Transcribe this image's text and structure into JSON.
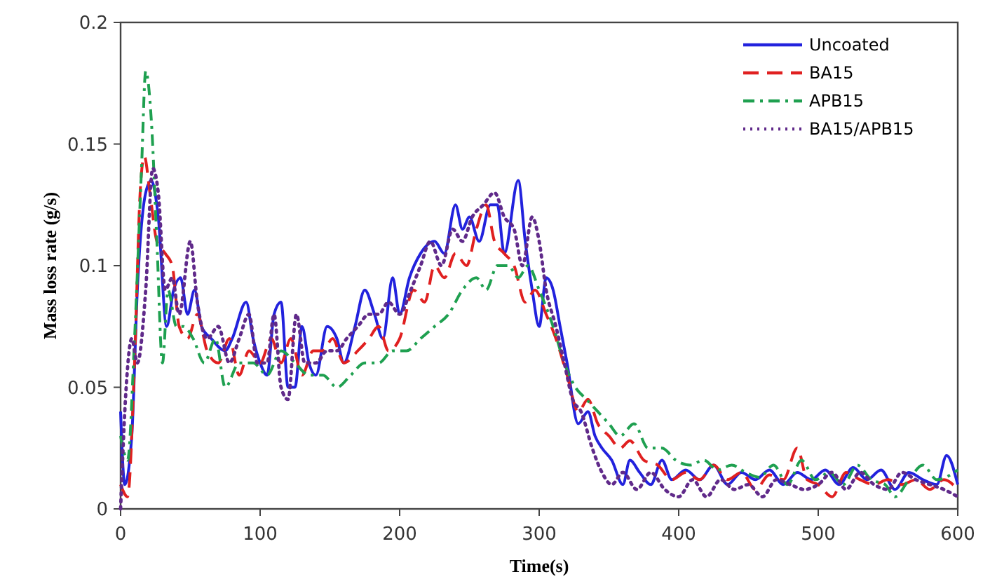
{
  "chart_data": {
    "type": "line",
    "xlabel": "Time(s)",
    "ylabel": "Mass loss rate (g/s)",
    "xlim": [
      0,
      600
    ],
    "xticks": [
      0,
      100,
      200,
      300,
      400,
      500,
      600
    ],
    "ylim": [
      0,
      0.2
    ],
    "yticks": [
      0,
      0.05,
      0.1,
      0.15,
      0.2
    ],
    "grid": false,
    "legend": "top right",
    "marker": "none",
    "series": [
      {
        "name": "Uncoated",
        "color": "#2222dd",
        "line_style": "solid",
        "x": [
          0,
          3,
          8,
          12,
          18,
          22,
          27,
          33,
          38,
          43,
          48,
          53,
          58,
          65,
          75,
          80,
          90,
          95,
          100,
          105,
          110,
          115,
          120,
          125,
          130,
          135,
          140,
          148,
          155,
          160,
          168,
          175,
          182,
          188,
          195,
          200,
          207,
          215,
          225,
          232,
          240,
          245,
          250,
          257,
          265,
          270,
          275,
          285,
          290,
          295,
          300,
          305,
          310,
          315,
          320,
          328,
          335,
          340,
          345,
          352,
          360,
          365,
          372,
          380,
          388,
          395,
          405,
          415,
          425,
          435,
          445,
          455,
          465,
          475,
          485,
          495,
          505,
          515,
          525,
          535,
          545,
          555,
          565,
          575,
          585,
          592,
          600
        ],
        "values": [
          0.04,
          0.01,
          0.03,
          0.09,
          0.13,
          0.135,
          0.12,
          0.075,
          0.09,
          0.095,
          0.08,
          0.09,
          0.075,
          0.07,
          0.065,
          0.07,
          0.085,
          0.07,
          0.06,
          0.055,
          0.08,
          0.085,
          0.05,
          0.05,
          0.075,
          0.06,
          0.055,
          0.075,
          0.07,
          0.06,
          0.075,
          0.09,
          0.08,
          0.07,
          0.095,
          0.08,
          0.095,
          0.105,
          0.11,
          0.105,
          0.125,
          0.115,
          0.12,
          0.11,
          0.125,
          0.125,
          0.105,
          0.135,
          0.11,
          0.09,
          0.075,
          0.095,
          0.09,
          0.075,
          0.06,
          0.035,
          0.04,
          0.03,
          0.025,
          0.02,
          0.01,
          0.02,
          0.015,
          0.01,
          0.02,
          0.012,
          0.016,
          0.012,
          0.018,
          0.01,
          0.015,
          0.012,
          0.016,
          0.01,
          0.015,
          0.012,
          0.016,
          0.01,
          0.017,
          0.012,
          0.016,
          0.008,
          0.015,
          0.012,
          0.01,
          0.022,
          0.01
        ]
      },
      {
        "name": "BA15",
        "color": "#e02020",
        "line_style": "dashed",
        "x": [
          0,
          5,
          10,
          14,
          17,
          21,
          26,
          32,
          37,
          42,
          48,
          55,
          62,
          70,
          78,
          85,
          92,
          100,
          108,
          115,
          122,
          130,
          138,
          145,
          152,
          160,
          170,
          178,
          185,
          192,
          200,
          210,
          218,
          225,
          232,
          240,
          248,
          255,
          262,
          268,
          275,
          282,
          290,
          297,
          305,
          312,
          320,
          328,
          335,
          342,
          350,
          358,
          365,
          375,
          385,
          395,
          405,
          415,
          425,
          435,
          445,
          455,
          465,
          475,
          485,
          492,
          500,
          510,
          520,
          530,
          540,
          550,
          560,
          570,
          580,
          590,
          600
        ],
        "values": [
          0.01,
          0.005,
          0.06,
          0.13,
          0.145,
          0.13,
          0.11,
          0.105,
          0.1,
          0.075,
          0.07,
          0.08,
          0.065,
          0.06,
          0.07,
          0.055,
          0.065,
          0.06,
          0.07,
          0.06,
          0.07,
          0.055,
          0.065,
          0.065,
          0.07,
          0.06,
          0.065,
          0.07,
          0.075,
          0.065,
          0.07,
          0.09,
          0.085,
          0.1,
          0.095,
          0.105,
          0.1,
          0.115,
          0.125,
          0.11,
          0.105,
          0.1,
          0.085,
          0.09,
          0.08,
          0.07,
          0.055,
          0.04,
          0.045,
          0.035,
          0.03,
          0.025,
          0.028,
          0.02,
          0.018,
          0.012,
          0.015,
          0.012,
          0.018,
          0.012,
          0.015,
          0.008,
          0.014,
          0.012,
          0.025,
          0.012,
          0.01,
          0.005,
          0.015,
          0.012,
          0.01,
          0.012,
          0.01,
          0.012,
          0.008,
          0.012,
          0.008
        ]
      },
      {
        "name": "APB15",
        "color": "#1fa050",
        "line_style": "dashdot",
        "x": [
          0,
          5,
          10,
          15,
          18,
          22,
          26,
          30,
          34,
          40,
          45,
          52,
          60,
          68,
          75,
          85,
          95,
          105,
          115,
          125,
          135,
          145,
          155,
          165,
          175,
          185,
          195,
          205,
          215,
          225,
          235,
          245,
          255,
          262,
          270,
          278,
          285,
          292,
          300,
          310,
          318,
          326,
          334,
          342,
          350,
          358,
          368,
          378,
          388,
          398,
          408,
          418,
          428,
          438,
          448,
          458,
          468,
          478,
          488,
          498,
          508,
          518,
          528,
          538,
          548,
          555,
          565,
          575,
          585,
          600
        ],
        "values": [
          0.03,
          0.02,
          0.07,
          0.14,
          0.18,
          0.16,
          0.11,
          0.06,
          0.09,
          0.075,
          0.075,
          0.07,
          0.06,
          0.07,
          0.05,
          0.06,
          0.06,
          0.055,
          0.065,
          0.06,
          0.055,
          0.055,
          0.05,
          0.055,
          0.06,
          0.06,
          0.065,
          0.065,
          0.07,
          0.075,
          0.08,
          0.09,
          0.095,
          0.09,
          0.1,
          0.1,
          0.095,
          0.1,
          0.09,
          0.075,
          0.06,
          0.05,
          0.045,
          0.04,
          0.035,
          0.03,
          0.035,
          0.025,
          0.025,
          0.02,
          0.018,
          0.02,
          0.016,
          0.018,
          0.015,
          0.013,
          0.018,
          0.01,
          0.02,
          0.012,
          0.015,
          0.01,
          0.018,
          0.012,
          0.01,
          0.005,
          0.012,
          0.018,
          0.012,
          0.016
        ]
      },
      {
        "name": "BA15/APB15",
        "color": "#602a8a",
        "line_style": "dotted",
        "x": [
          0,
          4,
          8,
          12,
          18,
          23,
          27,
          32,
          37,
          42,
          50,
          55,
          62,
          70,
          78,
          85,
          92,
          98,
          105,
          110,
          115,
          120,
          126,
          132,
          140,
          148,
          155,
          162,
          170,
          178,
          185,
          192,
          200,
          208,
          215,
          222,
          230,
          238,
          245,
          252,
          260,
          268,
          275,
          282,
          288,
          295,
          300,
          305,
          312,
          318,
          324,
          330,
          338,
          345,
          352,
          360,
          370,
          380,
          390,
          400,
          410,
          420,
          430,
          440,
          450,
          460,
          470,
          480,
          490,
          500,
          510,
          520,
          530,
          540,
          550,
          560,
          570,
          580,
          590,
          600
        ],
        "values": [
          0,
          0.05,
          0.07,
          0.06,
          0.09,
          0.14,
          0.13,
          0.09,
          0.095,
          0.08,
          0.11,
          0.085,
          0.07,
          0.075,
          0.06,
          0.07,
          0.08,
          0.06,
          0.06,
          0.08,
          0.05,
          0.045,
          0.08,
          0.06,
          0.06,
          0.065,
          0.065,
          0.07,
          0.075,
          0.08,
          0.08,
          0.085,
          0.08,
          0.09,
          0.1,
          0.11,
          0.1,
          0.115,
          0.11,
          0.12,
          0.125,
          0.13,
          0.12,
          0.115,
          0.1,
          0.12,
          0.11,
          0.09,
          0.075,
          0.06,
          0.045,
          0.04,
          0.025,
          0.015,
          0.01,
          0.015,
          0.008,
          0.015,
          0.008,
          0.005,
          0.012,
          0.005,
          0.012,
          0.008,
          0.01,
          0.005,
          0.012,
          0.01,
          0.008,
          0.01,
          0.015,
          0.008,
          0.015,
          0.01,
          0.008,
          0.015,
          0.012,
          0.01,
          0.008,
          0.005
        ]
      }
    ]
  }
}
